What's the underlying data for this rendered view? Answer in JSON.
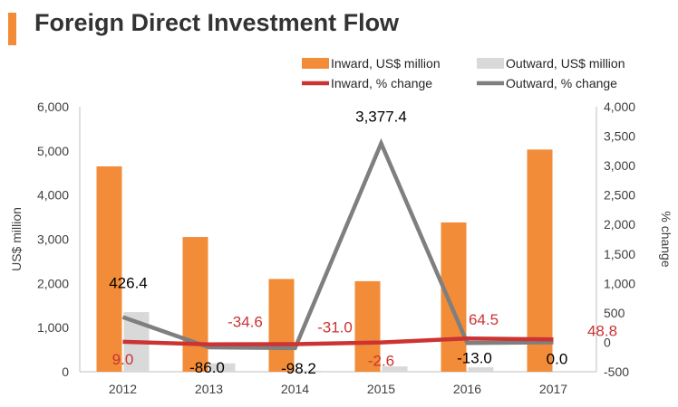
{
  "title": "Foreign Direct Investment Flow",
  "colors": {
    "inward_bar": "#f28c38",
    "outward_bar": "#d9d9d9",
    "inward_line": "#cc3333",
    "outward_line": "#7f7f7f",
    "title_accent": "#f28c38"
  },
  "chart_data": {
    "type": "bar",
    "categories": [
      "2012",
      "2013",
      "2014",
      "2015",
      "2016",
      "2017"
    ],
    "ylabel": "US$ million",
    "y2label": "% change",
    "ylim": [
      0,
      6000
    ],
    "y2lim": [
      -500,
      4000
    ],
    "y_ticks": [
      "0",
      "1,000",
      "2,000",
      "3,000",
      "4,000",
      "5,000",
      "6,000"
    ],
    "y2_ticks": [
      "-500",
      "0",
      "500",
      "1,000",
      "1,500",
      "2,000",
      "2,500",
      "3,000",
      "3,500",
      "4,000"
    ],
    "grid": false,
    "legend_position": "top-right",
    "series": [
      {
        "name": "Inward, US$ million",
        "type": "bar",
        "axis": "left",
        "values": [
          4650,
          3050,
          2100,
          2050,
          3380,
          5030
        ]
      },
      {
        "name": "Outward, US$ million",
        "type": "bar",
        "axis": "left",
        "values": [
          1350,
          190,
          25,
          120,
          100,
          0
        ]
      },
      {
        "name": "Inward, % change",
        "type": "line",
        "axis": "right",
        "values": [
          9.0,
          -34.6,
          -31.0,
          -2.6,
          64.5,
          48.8
        ],
        "labels": [
          "9.0",
          "-34.6",
          "-31.0",
          "-2.6",
          "64.5",
          "48.8"
        ]
      },
      {
        "name": "Outward, % change",
        "type": "line",
        "axis": "right",
        "values": [
          426.4,
          -86.0,
          -98.2,
          3377.4,
          -13.0,
          0.0
        ],
        "labels": [
          "426.4",
          "-86.0",
          "-98.2",
          "3,377.4",
          "-13.0",
          "0.0"
        ]
      }
    ]
  }
}
